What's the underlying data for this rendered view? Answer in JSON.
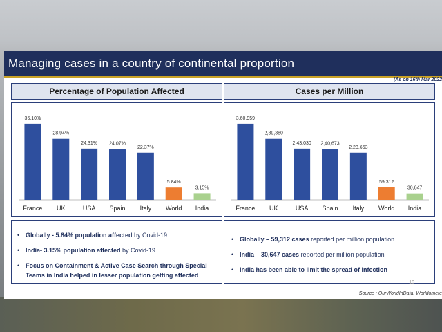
{
  "header": {
    "title": "Managing cases in a country of continental proportion",
    "date": "(As on 16th Mar 2022"
  },
  "left_panel": {
    "title": "Percentage of Population Affected",
    "bullets": [
      {
        "bold": "Globally - 5.84% population affected",
        "rest": " by Covid-19"
      },
      {
        "bold": "India- 3.15% population affected",
        "rest": " by Covid-19"
      },
      {
        "bold": "Focus on Containment & Active Case Search through Special Teams in India helped in lesser population getting affected",
        "rest": ""
      }
    ]
  },
  "right_panel": {
    "title": "Cases per Million",
    "bullets": [
      {
        "bold": "Globally – 59,312 cases",
        "rest": " reported per million population"
      },
      {
        "bold": "India – 30,647 cases",
        "rest": " reported per million population"
      },
      {
        "bold": "India has been able to limit the spread of infection",
        "rest": ""
      }
    ]
  },
  "page_number": "19",
  "source": "Source : OurWorldInData, Worldomete",
  "colors": {
    "blue": "#2e4f9e",
    "orange": "#ed7d31",
    "green": "#a9d18e",
    "navy": "#1f2f5c"
  },
  "chart_data": [
    {
      "type": "bar",
      "title": "Percentage of Population Affected",
      "categories": [
        "France",
        "UK",
        "USA",
        "Spain",
        "Italy",
        "World",
        "India"
      ],
      "values": [
        36.1,
        28.94,
        24.31,
        24.07,
        22.37,
        5.84,
        3.15
      ],
      "labels": [
        "36.10%",
        "28.94%",
        "24.31%",
        "24.07%",
        "22.37%",
        "5.84%",
        "3.15%"
      ],
      "bar_colors": [
        "#2e4f9e",
        "#2e4f9e",
        "#2e4f9e",
        "#2e4f9e",
        "#2e4f9e",
        "#ed7d31",
        "#a9d18e"
      ],
      "ylim": [
        0,
        40
      ]
    },
    {
      "type": "bar",
      "title": "Cases per Million",
      "categories": [
        "France",
        "UK",
        "USA",
        "Spain",
        "Italy",
        "World",
        "India"
      ],
      "values": [
        360959,
        289380,
        243030,
        240673,
        223663,
        59312,
        30647
      ],
      "labels": [
        "3,60,959",
        "2,89,380",
        "2,43,030",
        "2,40,673",
        "2,23,663",
        "59,312",
        "30,647"
      ],
      "bar_colors": [
        "#2e4f9e",
        "#2e4f9e",
        "#2e4f9e",
        "#2e4f9e",
        "#2e4f9e",
        "#ed7d31",
        "#a9d18e"
      ],
      "ylim": [
        0,
        400000
      ]
    }
  ]
}
